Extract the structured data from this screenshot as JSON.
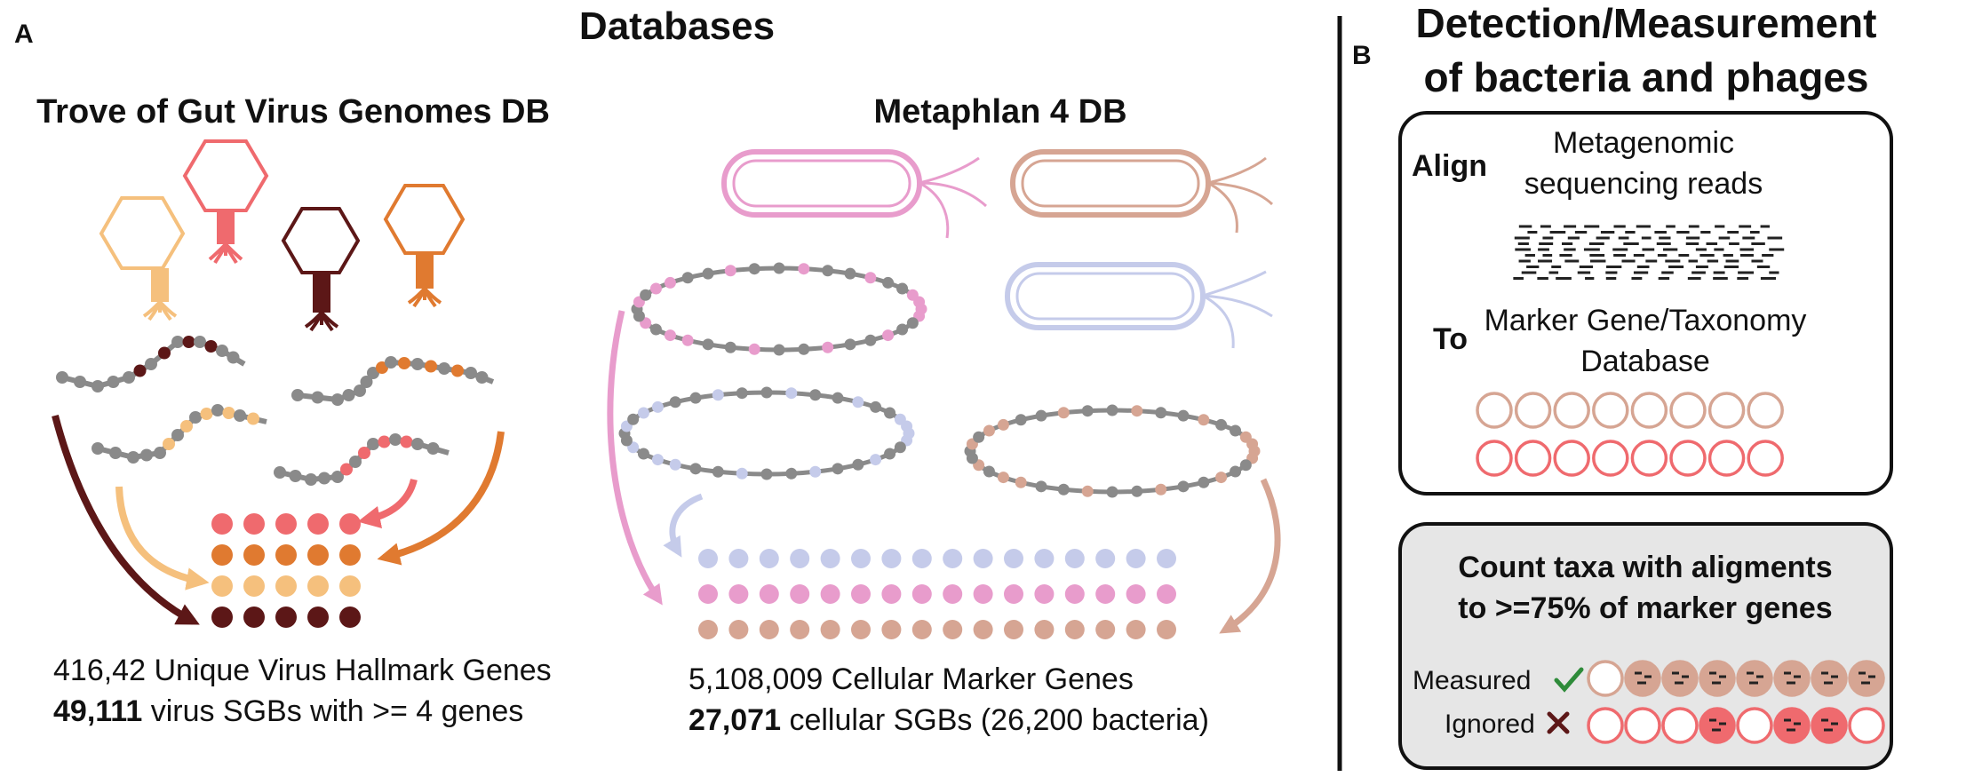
{
  "panel_a": {
    "letter": "A",
    "heading": "Databases",
    "virus_db": {
      "title": "Trove of Gut Virus Genomes DB",
      "line1": "416,42 Unique Virus Hallmark Genes",
      "line2_bold": "49,111",
      "line2_rest": " virus SGBs with >= 4 genes"
    },
    "cell_db": {
      "title": "Metaphlan 4 DB",
      "line1": "5,108,009 Cellular Marker Genes",
      "line2_bold": "27,071",
      "line2_rest": " cellular SGBs (26,200 bacteria)"
    }
  },
  "panel_b": {
    "letter": "B",
    "heading_line1": "Detection/Measurement",
    "heading_line2": "of bacteria and phages",
    "align_box": {
      "align_word": "Align",
      "reads_line1": "Metagenomic",
      "reads_line2": "sequencing reads",
      "to_word": "To",
      "db_line1": "Marker Gene/Taxonomy",
      "db_line2": "Database"
    },
    "count_box": {
      "title_line1": "Count taxa with aligments",
      "title_line2": "to >=75% of marker genes",
      "measured_label": "Measured",
      "ignored_label": "Ignored",
      "measured_icon": "check-icon",
      "ignored_icon": "cross-icon"
    }
  },
  "colors": {
    "virus": [
      "#f5c07d",
      "#ef6a6e",
      "#5c1717",
      "#e07a30"
    ],
    "cell": [
      "#e89ccc",
      "#d6a593",
      "#c5cbea"
    ],
    "gray": "#8a8a8a",
    "box_gray": "#e6e6e6"
  }
}
